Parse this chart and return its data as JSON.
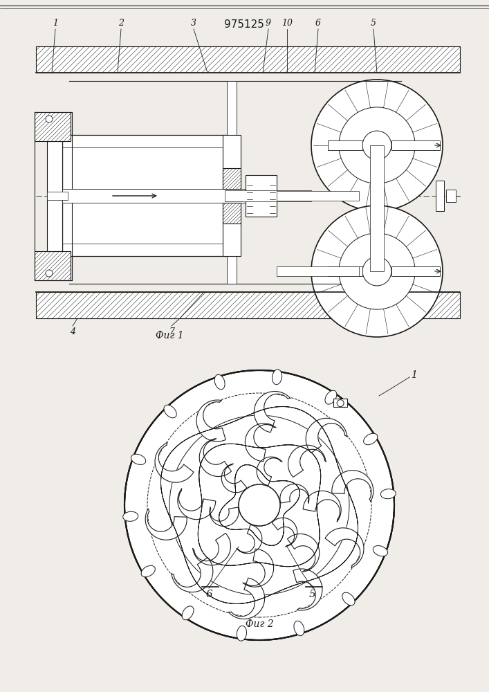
{
  "title": "975125",
  "bg_color": "#f0ede8",
  "line_color": "#1a1a1a",
  "lw": 0.8,
  "fig1_label": "Фиг 1",
  "fig2_label": "Фиг 2"
}
